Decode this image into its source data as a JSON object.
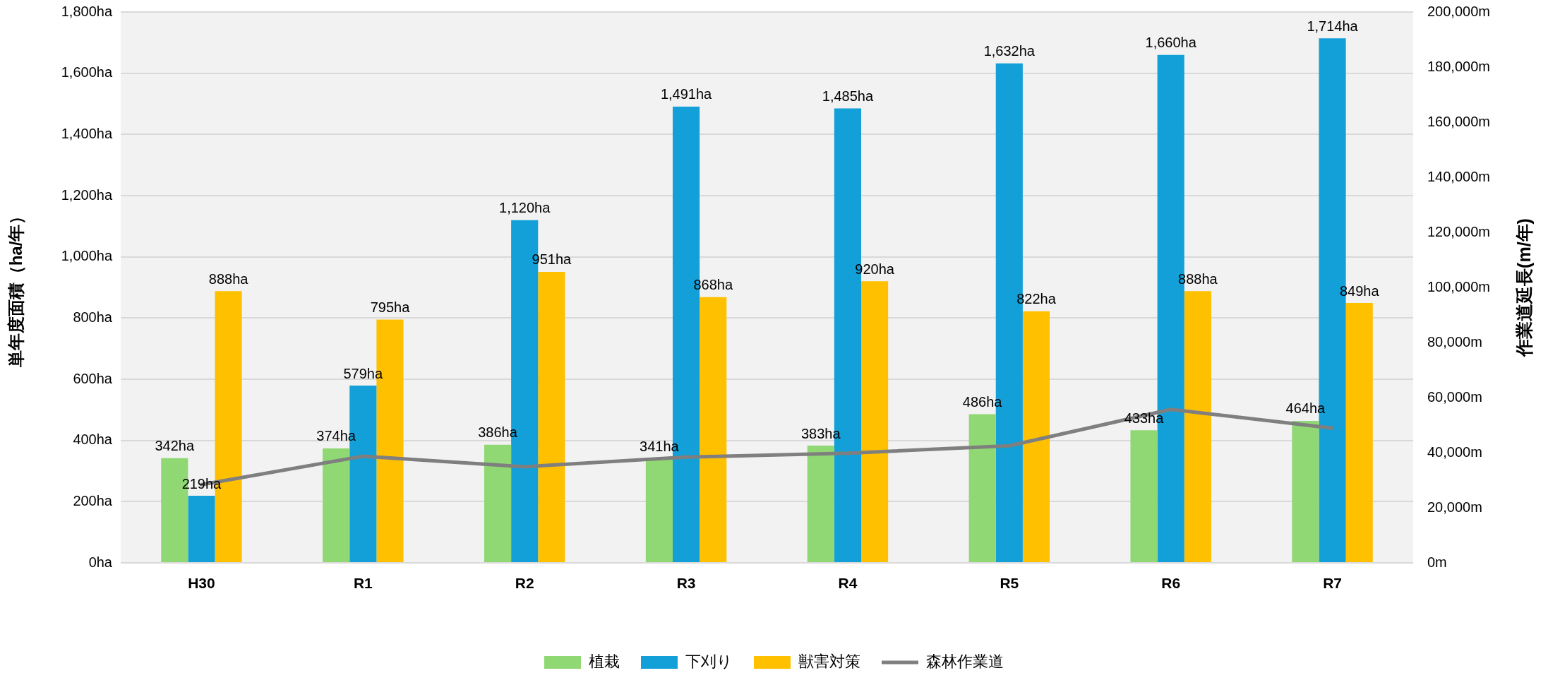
{
  "chart_data": {
    "type": "bar",
    "categories": [
      "H30",
      "R1",
      "R2",
      "R3",
      "R4",
      "R5",
      "R6",
      "R7"
    ],
    "ylabel": "単年度面積（ha/年）",
    "y2label": "作業道延長(m/年)",
    "ylim": [
      0,
      1800
    ],
    "yticks": [
      {
        "value": 0,
        "label": "0ha"
      },
      {
        "value": 200,
        "label": "200ha"
      },
      {
        "value": 400,
        "label": "400ha"
      },
      {
        "value": 600,
        "label": "600ha"
      },
      {
        "value": 800,
        "label": "800ha"
      },
      {
        "value": 1000,
        "label": "1,000ha"
      },
      {
        "value": 1200,
        "label": "1,200ha"
      },
      {
        "value": 1400,
        "label": "1,400ha"
      },
      {
        "value": 1600,
        "label": "1,600ha"
      },
      {
        "value": 1800,
        "label": "1,800ha"
      }
    ],
    "y2lim": [
      0,
      200000
    ],
    "y2ticks": [
      {
        "value": 0,
        "label": "0m"
      },
      {
        "value": 20000,
        "label": "20,000m"
      },
      {
        "value": 40000,
        "label": "40,000m"
      },
      {
        "value": 60000,
        "label": "60,000m"
      },
      {
        "value": 80000,
        "label": "80,000m"
      },
      {
        "value": 100000,
        "label": "100,000m"
      },
      {
        "value": 120000,
        "label": "120,000m"
      },
      {
        "value": 140000,
        "label": "140,000m"
      },
      {
        "value": 160000,
        "label": "160,000m"
      },
      {
        "value": 180000,
        "label": "180,000m"
      },
      {
        "value": 200000,
        "label": "200,000m"
      }
    ],
    "series": [
      {
        "name": "植栽",
        "color": "#8fd873",
        "values": [
          342,
          374,
          386,
          341,
          383,
          486,
          433,
          464
        ],
        "value_labels": [
          "342ha",
          "374ha",
          "386ha",
          "341ha",
          "383ha",
          "486ha",
          "433ha",
          "464ha"
        ]
      },
      {
        "name": "下刈り",
        "color": "#139fd7",
        "values": [
          219,
          579,
          1120,
          1491,
          1485,
          1632,
          1660,
          1714
        ],
        "value_labels": [
          "219ha",
          "579ha",
          "1,120ha",
          "1,491ha",
          "1,485ha",
          "1,632ha",
          "1,660ha",
          "1,714ha"
        ]
      },
      {
        "name": "獣害対策",
        "color": "#ffc000",
        "values": [
          888,
          795,
          951,
          868,
          920,
          822,
          888,
          849
        ],
        "value_labels": [
          "888ha",
          "795ha",
          "951ha",
          "868ha",
          "920ha",
          "822ha",
          "888ha",
          "849ha"
        ]
      },
      {
        "name": "森林作業道",
        "type": "line",
        "axis": "y2",
        "color": "#7f7f7f",
        "values": [
          28400,
          38700,
          34900,
          38400,
          39800,
          42500,
          55700,
          48900
        ]
      }
    ],
    "grid": "y",
    "legend": "bottom",
    "marker": "none",
    "line_style": "solid"
  }
}
